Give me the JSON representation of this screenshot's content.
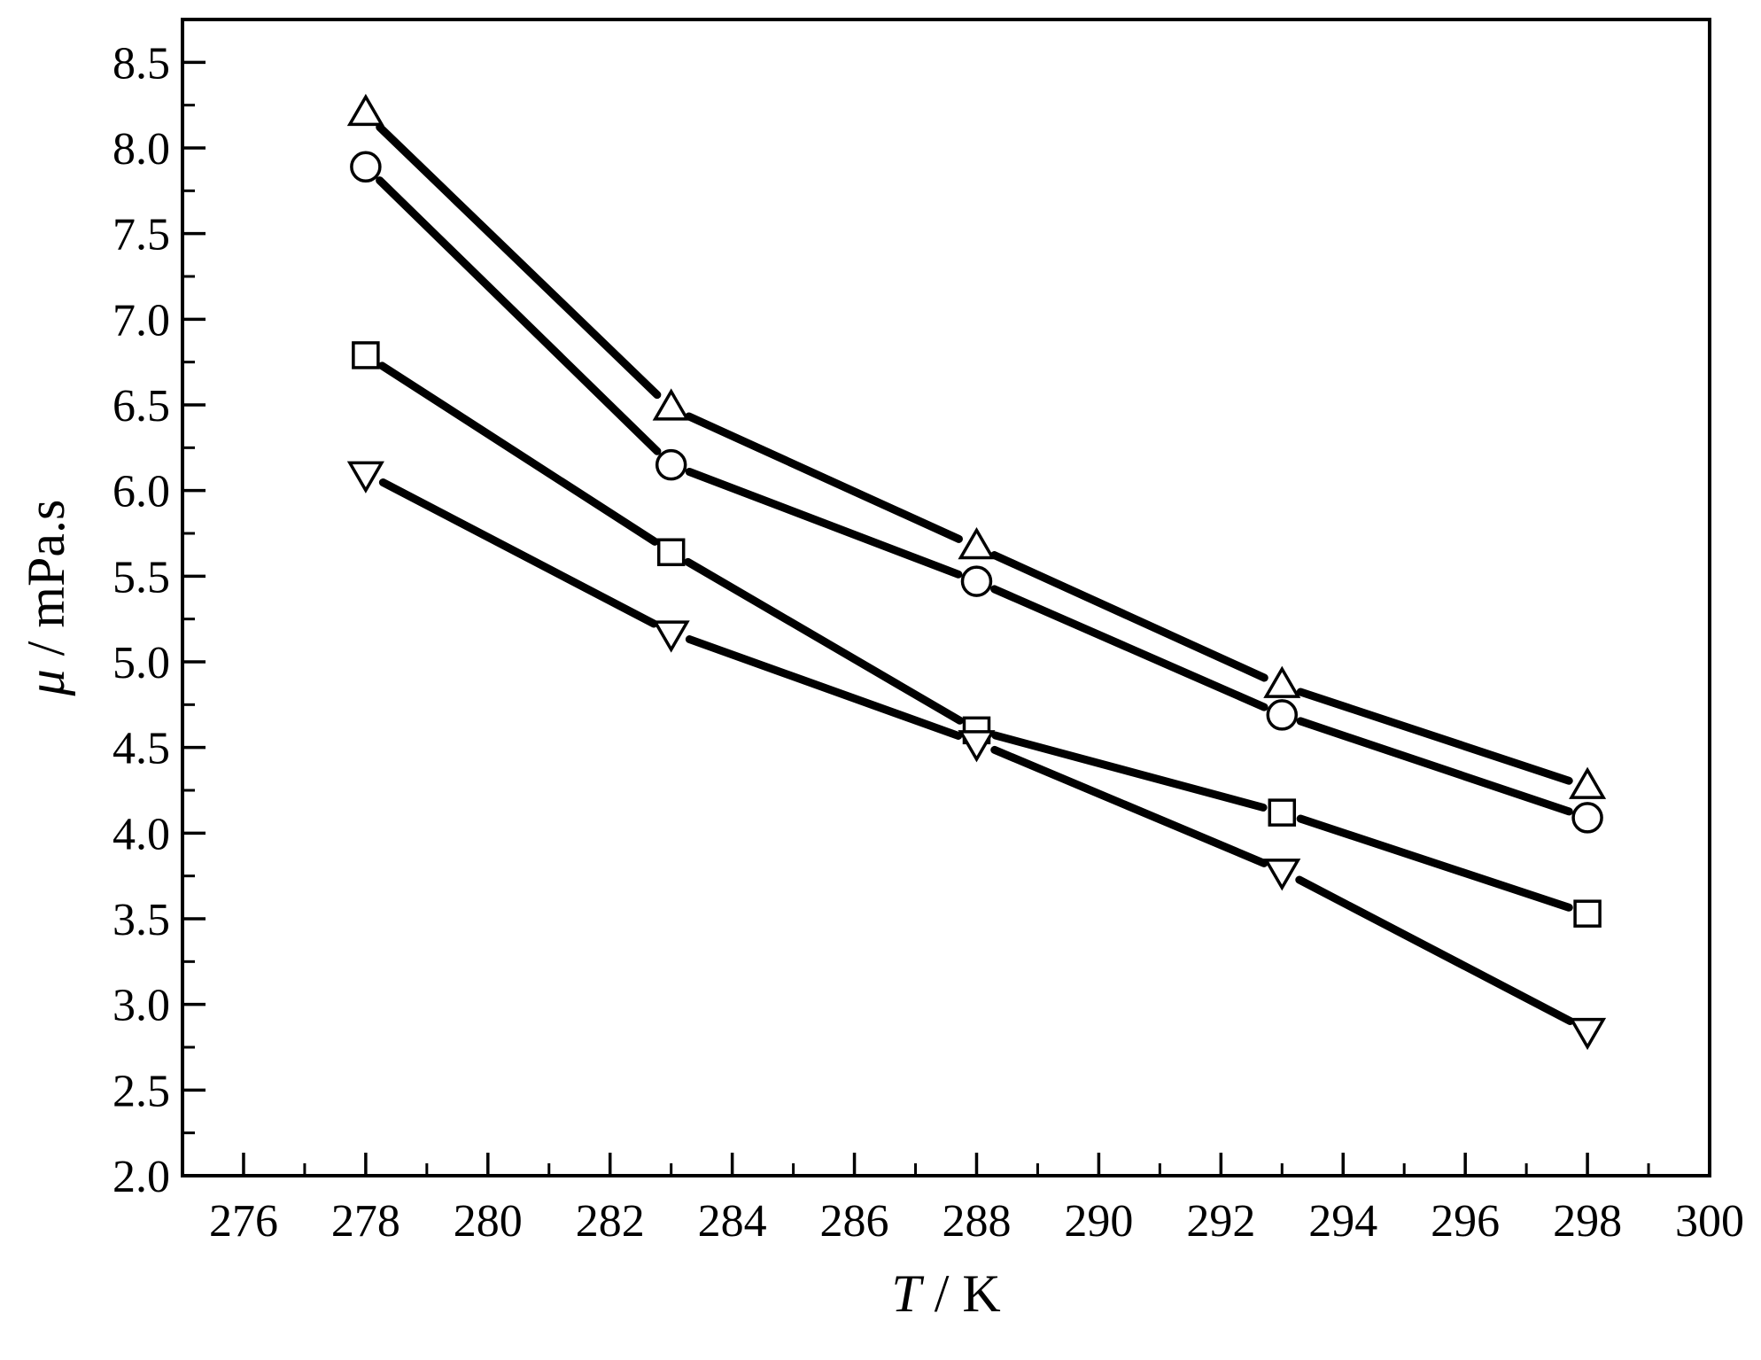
{
  "chart_data": {
    "type": "line",
    "xlabel": {
      "symbol": "T",
      "unit": " / K"
    },
    "ylabel": {
      "symbol": "μ",
      "unit": " / mPa.s"
    },
    "xlim": [
      275,
      300
    ],
    "ylim": [
      2.0,
      8.75
    ],
    "x_major_ticks": [
      "276",
      "278",
      "280",
      "282",
      "284",
      "286",
      "288",
      "290",
      "292",
      "294",
      "296",
      "298",
      "300"
    ],
    "y_major_ticks": [
      "2.0",
      "2.5",
      "3.0",
      "3.5",
      "4.0",
      "4.5",
      "5.0",
      "5.5",
      "6.0",
      "6.5",
      "7.0",
      "7.5",
      "8.0",
      "8.5"
    ],
    "x": [
      278,
      283,
      288,
      293,
      298
    ],
    "grid": false,
    "legend": "none",
    "series": [
      {
        "marker": "triangle-up",
        "values": [
          8.2,
          6.48,
          5.67,
          4.86,
          4.27
        ]
      },
      {
        "marker": "circle",
        "values": [
          7.89,
          6.15,
          5.47,
          4.69,
          4.09
        ]
      },
      {
        "marker": "square",
        "values": [
          6.79,
          5.64,
          4.6,
          4.12,
          3.53
        ]
      },
      {
        "marker": "triangle-down",
        "values": [
          6.1,
          5.17,
          4.53,
          3.78,
          2.85
        ]
      }
    ]
  }
}
